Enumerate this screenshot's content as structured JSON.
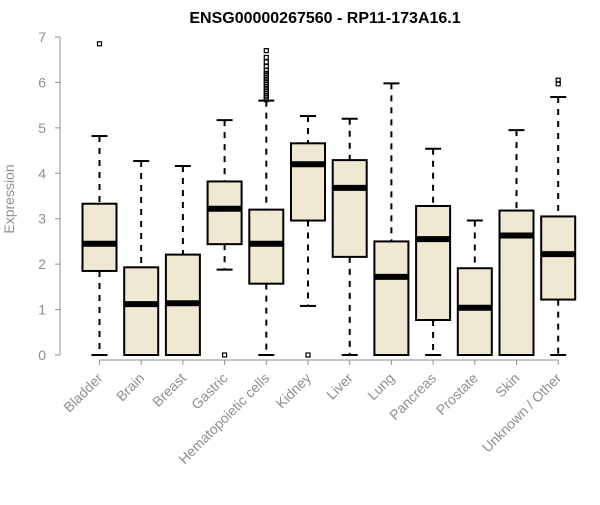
{
  "chart_data": {
    "type": "box",
    "title": "ENSG00000267560 - RP11-173A16.1",
    "xlabel": "",
    "ylabel": "Expression",
    "ylim": [
      0,
      7
    ],
    "yticks": [
      0,
      1,
      2,
      3,
      4,
      5,
      6,
      7
    ],
    "grid": false,
    "colors": {
      "box_fill": "#efe8d2",
      "stroke": "#000000",
      "label": "#8f8f8f",
      "title": "#000000"
    },
    "categories": [
      "Bladder",
      "Brain",
      "Breast",
      "Gastric",
      "Hematopoietic cells",
      "Kidney",
      "Liver",
      "Lung",
      "Pancreas",
      "Prostate",
      "Skin",
      "Unknown / Other"
    ],
    "boxes": [
      {
        "min": 0.0,
        "q1": 1.85,
        "median": 2.45,
        "q3": 3.33,
        "max": 4.82,
        "outliers": [
          6.85
        ]
      },
      {
        "min": 0.0,
        "q1": 0.0,
        "median": 1.12,
        "q3": 1.93,
        "max": 4.27,
        "outliers": []
      },
      {
        "min": 0.0,
        "q1": 0.0,
        "median": 1.14,
        "q3": 2.21,
        "max": 4.16,
        "outliers": []
      },
      {
        "min": 1.88,
        "q1": 2.44,
        "median": 3.22,
        "q3": 3.82,
        "max": 5.17,
        "outliers": [
          0.0
        ]
      },
      {
        "min": 0.0,
        "q1": 1.57,
        "median": 2.45,
        "q3": 3.2,
        "max": 5.6,
        "outliers": [
          5.62,
          5.66,
          5.7,
          5.75,
          5.8,
          5.85,
          5.9,
          5.95,
          6.0,
          6.05,
          6.1,
          6.15,
          6.2,
          6.27,
          6.35,
          6.45,
          6.55,
          6.7
        ]
      },
      {
        "min": 1.08,
        "q1": 2.96,
        "median": 4.2,
        "q3": 4.66,
        "max": 5.26,
        "outliers": [
          0.0
        ]
      },
      {
        "min": 0.0,
        "q1": 2.16,
        "median": 3.68,
        "q3": 4.29,
        "max": 5.2,
        "outliers": []
      },
      {
        "min": 0.0,
        "q1": 0.0,
        "median": 1.72,
        "q3": 2.5,
        "max": 5.98,
        "outliers": []
      },
      {
        "min": 0.0,
        "q1": 0.77,
        "median": 2.55,
        "q3": 3.28,
        "max": 4.54,
        "outliers": []
      },
      {
        "min": 0.0,
        "q1": 0.0,
        "median": 1.04,
        "q3": 1.91,
        "max": 2.96,
        "outliers": []
      },
      {
        "min": 0.0,
        "q1": 0.0,
        "median": 2.63,
        "q3": 3.18,
        "max": 4.95,
        "outliers": []
      },
      {
        "min": 0.0,
        "q1": 1.22,
        "median": 2.22,
        "q3": 3.05,
        "max": 5.68,
        "outliers": [
          5.97,
          6.05
        ]
      }
    ]
  }
}
